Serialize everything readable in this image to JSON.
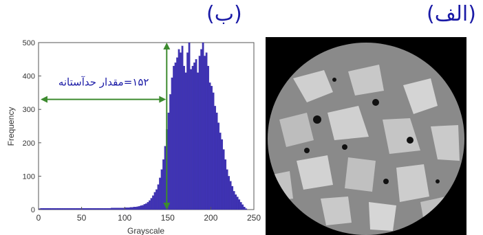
{
  "panels": {
    "left_label": "(ب)",
    "right_label": "(الف)"
  },
  "colors": {
    "bars": "#3f33b4",
    "bar_edge": "#2a1f9a",
    "arrow": "#3d8b2f",
    "threshold_text": "#1a1aa6"
  },
  "chart_data": {
    "type": "bar",
    "xlabel": "Grayscale",
    "ylabel": "Frequency",
    "xlim": [
      0,
      250
    ],
    "ylim": [
      0,
      500
    ],
    "xticks": [
      0,
      50,
      100,
      150,
      200,
      250
    ],
    "yticks": [
      0,
      100,
      200,
      300,
      400,
      500
    ],
    "annotation": {
      "text": "۱۵۲=مقدار حدآستانه",
      "threshold": 152
    },
    "grayscale": [
      0,
      2,
      4,
      6,
      8,
      10,
      12,
      14,
      16,
      18,
      20,
      22,
      24,
      26,
      28,
      30,
      32,
      34,
      36,
      38,
      40,
      42,
      44,
      46,
      48,
      50,
      52,
      54,
      56,
      58,
      60,
      62,
      64,
      66,
      68,
      70,
      72,
      74,
      76,
      78,
      80,
      82,
      84,
      86,
      88,
      90,
      92,
      94,
      96,
      98,
      100,
      102,
      104,
      106,
      108,
      110,
      112,
      114,
      116,
      118,
      120,
      122,
      124,
      126,
      128,
      130,
      132,
      134,
      136,
      138,
      140,
      142,
      144,
      146,
      148,
      150,
      152,
      154,
      156,
      158,
      160,
      162,
      164,
      166,
      168,
      170,
      172,
      174,
      176,
      178,
      180,
      182,
      184,
      186,
      188,
      190,
      192,
      194,
      196,
      198,
      200,
      202,
      204,
      206,
      208,
      210,
      212,
      214,
      216,
      218,
      220,
      222,
      224,
      226,
      228,
      230,
      232,
      234,
      236,
      238,
      240
    ],
    "frequency": [
      3,
      4,
      4,
      4,
      4,
      4,
      4,
      4,
      4,
      4,
      4,
      4,
      4,
      4,
      4,
      4,
      4,
      4,
      4,
      4,
      4,
      4,
      4,
      4,
      4,
      4,
      4,
      4,
      4,
      4,
      4,
      4,
      4,
      4,
      4,
      4,
      4,
      4,
      4,
      4,
      4,
      4,
      5,
      5,
      5,
      5,
      5,
      5,
      5,
      5,
      6,
      6,
      6,
      7,
      7,
      8,
      8,
      9,
      10,
      12,
      13,
      16,
      18,
      22,
      27,
      34,
      42,
      52,
      60,
      75,
      95,
      120,
      150,
      190,
      240,
      290,
      345,
      395,
      430,
      440,
      455,
      480,
      470,
      490,
      430,
      410,
      470,
      500,
      420,
      430,
      440,
      450,
      410,
      460,
      480,
      500,
      460,
      470,
      430,
      380,
      370,
      350,
      310,
      290,
      260,
      230,
      210,
      180,
      150,
      120,
      100,
      85,
      70,
      55,
      45,
      38,
      30,
      22,
      15,
      8,
      3
    ]
  }
}
